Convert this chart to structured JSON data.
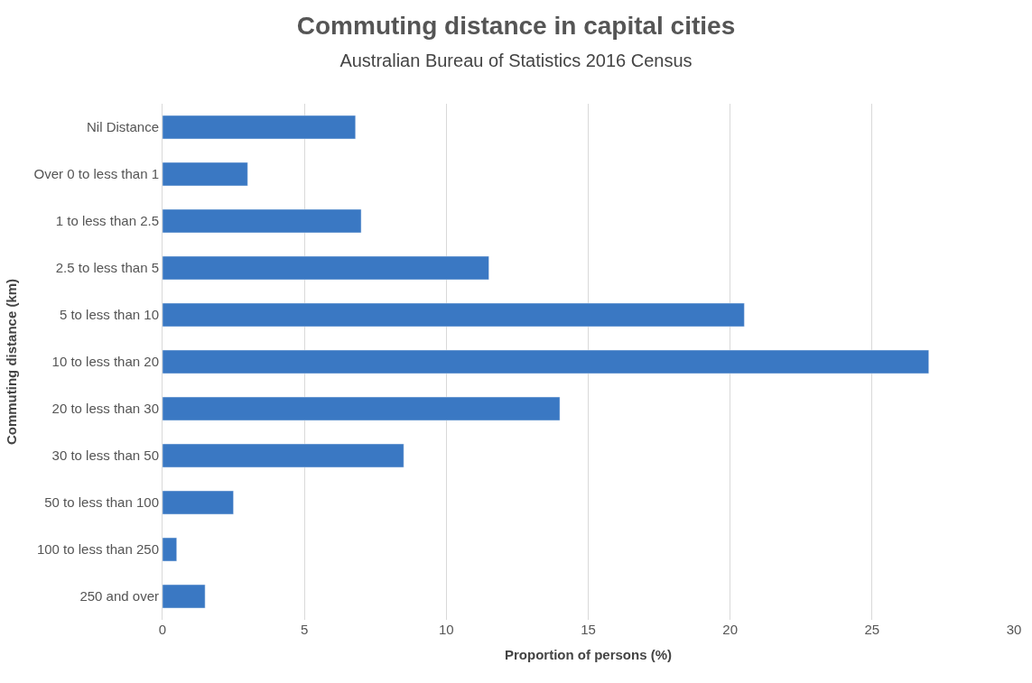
{
  "chart_data": {
    "type": "bar",
    "orientation": "horizontal",
    "title": "Commuting distance in capital cities",
    "subtitle": "Australian Bureau of Statistics 2016 Census",
    "xlabel": "Proportion of persons (%)",
    "ylabel": "Commuting distance (km)",
    "categories": [
      "Nil Distance",
      "Over 0 to less than 1",
      "1 to less than 2.5",
      "2.5 to less than 5",
      "5 to less than 10",
      "10 to less than 20",
      "20 to less than 30",
      "30 to less than 50",
      "50 to less than 100",
      "100 to less than 250",
      "250 and over"
    ],
    "values": [
      6.8,
      3.0,
      7.0,
      11.5,
      20.5,
      27.0,
      14.0,
      8.5,
      2.5,
      0.5,
      1.5
    ],
    "color": "#3a78c3",
    "xlim": [
      0,
      30
    ],
    "xticks": [
      0,
      5,
      10,
      15,
      20,
      25,
      30
    ],
    "grid": "x"
  }
}
